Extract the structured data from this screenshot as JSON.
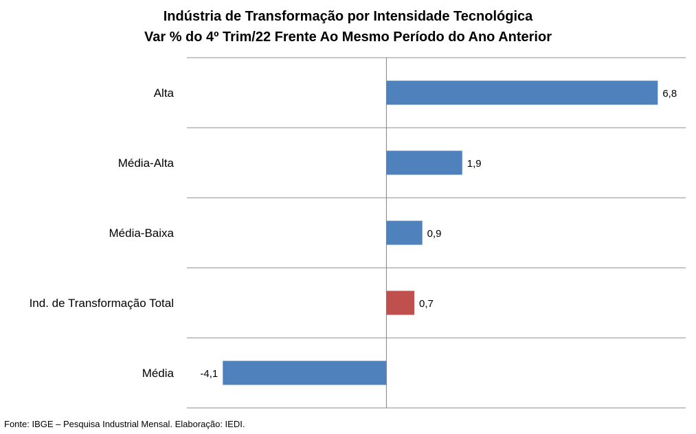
{
  "chart_data": {
    "type": "bar",
    "orientation": "horizontal",
    "title": "Indústria de Transformação por Intensidade Tecnológica",
    "subtitle": "Var % do 4º Trim/22 Frente Ao Mesmo Período do Ano Anterior",
    "categories": [
      "Alta",
      "Média-Alta",
      "Média-Baixa",
      "Ind. de Transformação Total",
      "Média"
    ],
    "values": [
      6.8,
      1.9,
      0.9,
      0.7,
      -4.1
    ],
    "value_labels": [
      "6,8",
      "1,9",
      "0,9",
      "0,7",
      "-4,1"
    ],
    "colors": [
      "#4F81BD",
      "#4F81BD",
      "#4F81BD",
      "#C0504D",
      "#4F81BD"
    ],
    "xlim": [
      -5,
      7.5
    ],
    "grid": "horizontal separators between categories",
    "legend": "none"
  },
  "source": "Fonte: IBGE – Pesquisa Industrial Mensal. Elaboração: IEDI."
}
